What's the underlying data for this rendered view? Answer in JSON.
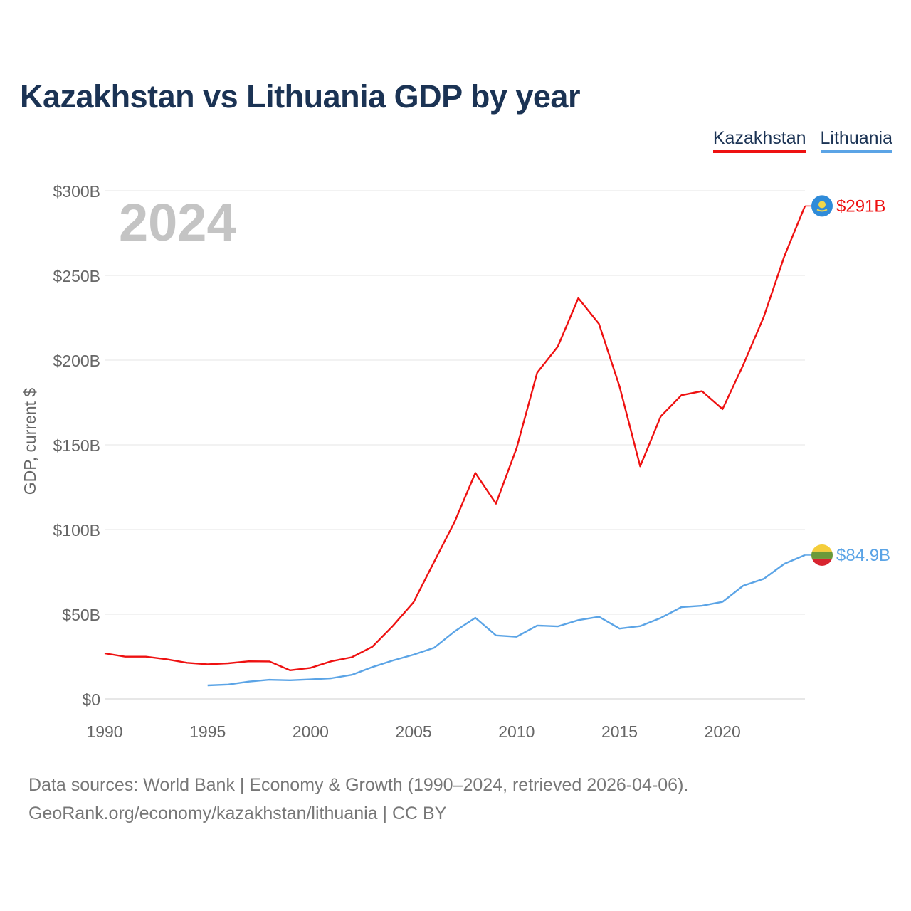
{
  "title": "Kazakhstan vs Lithuania GDP by year",
  "legend": [
    {
      "label": "Kazakhstan",
      "color": "#ee1111"
    },
    {
      "label": "Lithuania",
      "color": "#5ba4e6"
    }
  ],
  "year_watermark": "2024",
  "source": {
    "line1": "Data sources: World Bank | Economy & Growth (1990–2024, retrieved 2026-04-06).",
    "line2": "GeoRank.org/economy/kazakhstan/lithuania | CC BY"
  },
  "chart_data": {
    "type": "line",
    "title": "Kazakhstan vs Lithuania GDP by year",
    "xlabel": "",
    "ylabel": "GDP, current $",
    "xlim": [
      1990,
      2024
    ],
    "ylim": [
      0,
      300
    ],
    "unit": "billions USD",
    "x_ticks": [
      1990,
      1995,
      2000,
      2005,
      2010,
      2015,
      2020
    ],
    "x_tick_labels": [
      "1990",
      "1995",
      "2000",
      "2005",
      "2010",
      "2015",
      "2020"
    ],
    "y_ticks": [
      0,
      50,
      100,
      150,
      200,
      250,
      300
    ],
    "y_tick_labels": [
      "$0",
      "$50B",
      "$100B",
      "$150B",
      "$200B",
      "$250B",
      "$300B"
    ],
    "grid": true,
    "legend_position": "top-right",
    "series": [
      {
        "name": "Kazakhstan",
        "color": "#ee1111",
        "end_label": "$291B",
        "points": [
          [
            1990,
            26.9
          ],
          [
            1991,
            24.9
          ],
          [
            1992,
            24.9
          ],
          [
            1993,
            23.4
          ],
          [
            1994,
            21.3
          ],
          [
            1995,
            20.4
          ],
          [
            1996,
            21.0
          ],
          [
            1997,
            22.2
          ],
          [
            1998,
            22.1
          ],
          [
            1999,
            16.9
          ],
          [
            2000,
            18.3
          ],
          [
            2001,
            22.2
          ],
          [
            2002,
            24.6
          ],
          [
            2003,
            30.8
          ],
          [
            2004,
            43.2
          ],
          [
            2005,
            57.1
          ],
          [
            2006,
            81.0
          ],
          [
            2007,
            104.8
          ],
          [
            2008,
            133.4
          ],
          [
            2009,
            115.3
          ],
          [
            2010,
            148.0
          ],
          [
            2011,
            192.6
          ],
          [
            2012,
            208.0
          ],
          [
            2013,
            236.6
          ],
          [
            2014,
            221.4
          ],
          [
            2015,
            184.4
          ],
          [
            2016,
            137.3
          ],
          [
            2017,
            166.8
          ],
          [
            2018,
            179.3
          ],
          [
            2019,
            181.7
          ],
          [
            2020,
            171.1
          ],
          [
            2021,
            197.1
          ],
          [
            2022,
            225.5
          ],
          [
            2023,
            261.4
          ],
          [
            2024,
            291.0
          ]
        ]
      },
      {
        "name": "Lithuania",
        "color": "#5ba4e6",
        "end_label": "$84.9B",
        "points": [
          [
            1995,
            8.0
          ],
          [
            1996,
            8.5
          ],
          [
            1997,
            10.2
          ],
          [
            1998,
            11.3
          ],
          [
            1999,
            11.0
          ],
          [
            2000,
            11.5
          ],
          [
            2001,
            12.2
          ],
          [
            2002,
            14.2
          ],
          [
            2003,
            18.8
          ],
          [
            2004,
            22.7
          ],
          [
            2005,
            26.1
          ],
          [
            2006,
            30.2
          ],
          [
            2007,
            39.9
          ],
          [
            2008,
            47.9
          ],
          [
            2009,
            37.5
          ],
          [
            2010,
            36.7
          ],
          [
            2011,
            43.3
          ],
          [
            2012,
            42.8
          ],
          [
            2013,
            46.5
          ],
          [
            2014,
            48.5
          ],
          [
            2015,
            41.5
          ],
          [
            2016,
            43.0
          ],
          [
            2017,
            47.8
          ],
          [
            2018,
            54.2
          ],
          [
            2019,
            55.0
          ],
          [
            2020,
            57.3
          ],
          [
            2021,
            66.8
          ],
          [
            2022,
            70.9
          ],
          [
            2023,
            79.8
          ],
          [
            2024,
            84.9
          ]
        ]
      }
    ]
  }
}
